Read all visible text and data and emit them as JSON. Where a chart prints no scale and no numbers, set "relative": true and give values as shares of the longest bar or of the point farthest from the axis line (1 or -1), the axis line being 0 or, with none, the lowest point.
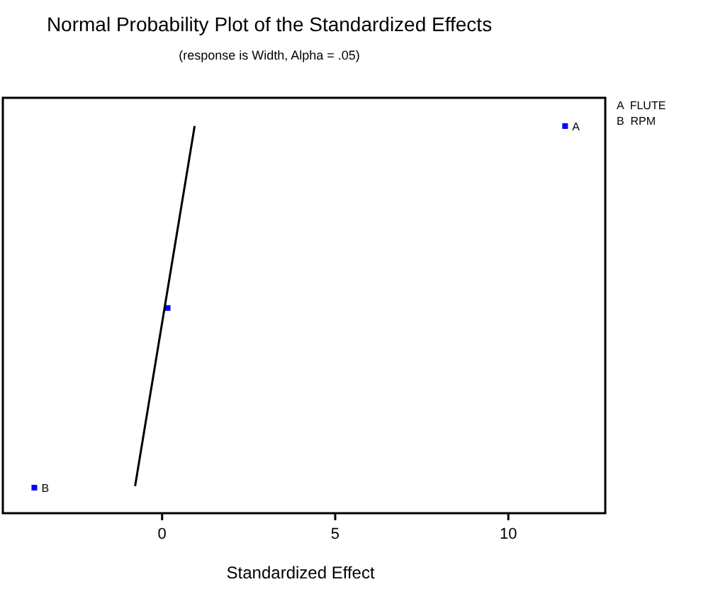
{
  "chart_data": {
    "type": "scatter",
    "title": "Normal Probability Plot of the Standardized Effects",
    "subtitle": "(response is Width, Alpha = .05)",
    "xlabel": "Standardized Effect",
    "relative": true,
    "xlim": [
      -4.6,
      12.8
    ],
    "xticks": [
      0,
      5,
      10
    ],
    "marker": "square",
    "series": [
      {
        "color": "#0000ff",
        "x": [
          -3.69,
          0.16,
          11.64
        ],
        "values": [
          0.066,
          0.53,
          1
        ]
      },
      {
        "type": "line",
        "color": "#000000",
        "marker": "none",
        "x": [
          -0.78,
          0.94
        ],
        "values": [
          0.07,
          1
        ]
      }
    ],
    "annotations": [
      {
        "text": "A",
        "x": 11.64,
        "y": 1
      },
      {
        "text": "B",
        "x": -3.69,
        "y": 0.066
      },
      "A  FLUTE",
      "B  RPM"
    ]
  }
}
